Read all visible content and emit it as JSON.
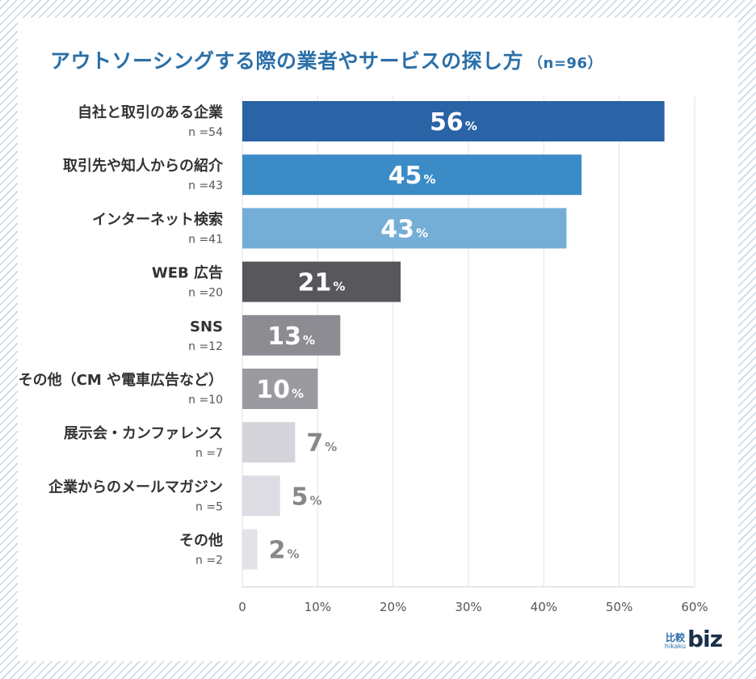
{
  "title": {
    "main": "アウトソーシングする際の業者やサービスの探し方",
    "sample": "（n=96）"
  },
  "logo": {
    "jp": "比較",
    "romaji": "hikaku",
    "word": "biz"
  },
  "chart_data": {
    "type": "bar",
    "orientation": "horizontal",
    "title": "アウトソーシングする際の業者やサービスの探し方（n=96）",
    "xlabel": "",
    "ylabel": "",
    "xlim": [
      0,
      60
    ],
    "xticks": [
      "0",
      "10%",
      "20%",
      "30%",
      "40%",
      "50%",
      "60%"
    ],
    "xtick_values": [
      0,
      10,
      20,
      30,
      40,
      50,
      60
    ],
    "unit": "%",
    "categories": [
      "自社と取引のある企業",
      "取引先や知人からの紹介",
      "インターネット検索",
      "WEB 広告",
      "SNS",
      "その他（CM や電車広告など）",
      "展示会・カンファレンス",
      "企業からのメールマガジン",
      "その他"
    ],
    "counts": [
      "n =54",
      "n =43",
      "n =41",
      "n =20",
      "n =12",
      "n =10",
      "n =7",
      "n =5",
      "n =2"
    ],
    "values": [
      56,
      45,
      43,
      21,
      13,
      10,
      7,
      5,
      2
    ],
    "value_labels": [
      "56",
      "45",
      "43",
      "21",
      "13",
      "10",
      "7",
      "5",
      "2"
    ],
    "bar_colors": [
      "#2a63a6",
      "#3b8cc6",
      "#74aed6",
      "#58585c",
      "#8c8c92",
      "#9a9aa0",
      "#d4d4da",
      "#dcdce2",
      "#e2e2e8"
    ],
    "label_inside": [
      true,
      true,
      true,
      true,
      true,
      true,
      false,
      false,
      false
    ],
    "inside_label_color": "#ffffff",
    "outside_label_color": "#888888",
    "grid": true
  }
}
